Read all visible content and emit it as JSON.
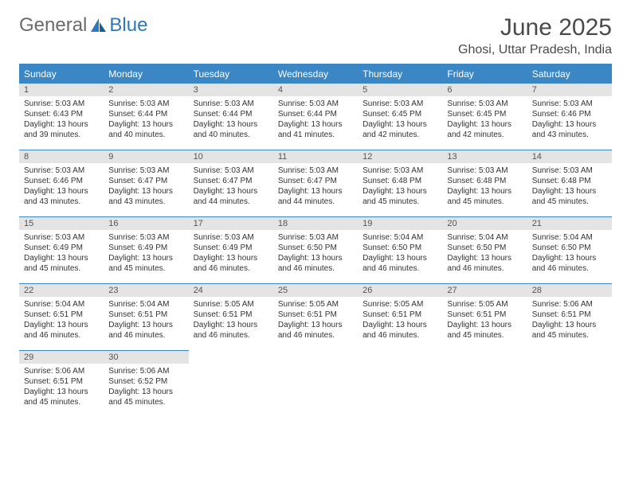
{
  "logo": {
    "text1": "General",
    "text2": "Blue"
  },
  "title": "June 2025",
  "location": "Ghosi, Uttar Pradesh, India",
  "header_bg": "#3b86c4",
  "daynum_bg": "#e4e4e4",
  "day_names": [
    "Sunday",
    "Monday",
    "Tuesday",
    "Wednesday",
    "Thursday",
    "Friday",
    "Saturday"
  ],
  "weeks": [
    [
      {
        "n": "1",
        "sr": "5:03 AM",
        "ss": "6:43 PM",
        "dl": "13 hours and 39 minutes."
      },
      {
        "n": "2",
        "sr": "5:03 AM",
        "ss": "6:44 PM",
        "dl": "13 hours and 40 minutes."
      },
      {
        "n": "3",
        "sr": "5:03 AM",
        "ss": "6:44 PM",
        "dl": "13 hours and 40 minutes."
      },
      {
        "n": "4",
        "sr": "5:03 AM",
        "ss": "6:44 PM",
        "dl": "13 hours and 41 minutes."
      },
      {
        "n": "5",
        "sr": "5:03 AM",
        "ss": "6:45 PM",
        "dl": "13 hours and 42 minutes."
      },
      {
        "n": "6",
        "sr": "5:03 AM",
        "ss": "6:45 PM",
        "dl": "13 hours and 42 minutes."
      },
      {
        "n": "7",
        "sr": "5:03 AM",
        "ss": "6:46 PM",
        "dl": "13 hours and 43 minutes."
      }
    ],
    [
      {
        "n": "8",
        "sr": "5:03 AM",
        "ss": "6:46 PM",
        "dl": "13 hours and 43 minutes."
      },
      {
        "n": "9",
        "sr": "5:03 AM",
        "ss": "6:47 PM",
        "dl": "13 hours and 43 minutes."
      },
      {
        "n": "10",
        "sr": "5:03 AM",
        "ss": "6:47 PM",
        "dl": "13 hours and 44 minutes."
      },
      {
        "n": "11",
        "sr": "5:03 AM",
        "ss": "6:47 PM",
        "dl": "13 hours and 44 minutes."
      },
      {
        "n": "12",
        "sr": "5:03 AM",
        "ss": "6:48 PM",
        "dl": "13 hours and 45 minutes."
      },
      {
        "n": "13",
        "sr": "5:03 AM",
        "ss": "6:48 PM",
        "dl": "13 hours and 45 minutes."
      },
      {
        "n": "14",
        "sr": "5:03 AM",
        "ss": "6:48 PM",
        "dl": "13 hours and 45 minutes."
      }
    ],
    [
      {
        "n": "15",
        "sr": "5:03 AM",
        "ss": "6:49 PM",
        "dl": "13 hours and 45 minutes."
      },
      {
        "n": "16",
        "sr": "5:03 AM",
        "ss": "6:49 PM",
        "dl": "13 hours and 45 minutes."
      },
      {
        "n": "17",
        "sr": "5:03 AM",
        "ss": "6:49 PM",
        "dl": "13 hours and 46 minutes."
      },
      {
        "n": "18",
        "sr": "5:03 AM",
        "ss": "6:50 PM",
        "dl": "13 hours and 46 minutes."
      },
      {
        "n": "19",
        "sr": "5:04 AM",
        "ss": "6:50 PM",
        "dl": "13 hours and 46 minutes."
      },
      {
        "n": "20",
        "sr": "5:04 AM",
        "ss": "6:50 PM",
        "dl": "13 hours and 46 minutes."
      },
      {
        "n": "21",
        "sr": "5:04 AM",
        "ss": "6:50 PM",
        "dl": "13 hours and 46 minutes."
      }
    ],
    [
      {
        "n": "22",
        "sr": "5:04 AM",
        "ss": "6:51 PM",
        "dl": "13 hours and 46 minutes."
      },
      {
        "n": "23",
        "sr": "5:04 AM",
        "ss": "6:51 PM",
        "dl": "13 hours and 46 minutes."
      },
      {
        "n": "24",
        "sr": "5:05 AM",
        "ss": "6:51 PM",
        "dl": "13 hours and 46 minutes."
      },
      {
        "n": "25",
        "sr": "5:05 AM",
        "ss": "6:51 PM",
        "dl": "13 hours and 46 minutes."
      },
      {
        "n": "26",
        "sr": "5:05 AM",
        "ss": "6:51 PM",
        "dl": "13 hours and 46 minutes."
      },
      {
        "n": "27",
        "sr": "5:05 AM",
        "ss": "6:51 PM",
        "dl": "13 hours and 45 minutes."
      },
      {
        "n": "28",
        "sr": "5:06 AM",
        "ss": "6:51 PM",
        "dl": "13 hours and 45 minutes."
      }
    ],
    [
      {
        "n": "29",
        "sr": "5:06 AM",
        "ss": "6:51 PM",
        "dl": "13 hours and 45 minutes."
      },
      {
        "n": "30",
        "sr": "5:06 AM",
        "ss": "6:52 PM",
        "dl": "13 hours and 45 minutes."
      },
      null,
      null,
      null,
      null,
      null
    ]
  ],
  "labels": {
    "sunrise": "Sunrise:",
    "sunset": "Sunset:",
    "daylight": "Daylight:"
  }
}
